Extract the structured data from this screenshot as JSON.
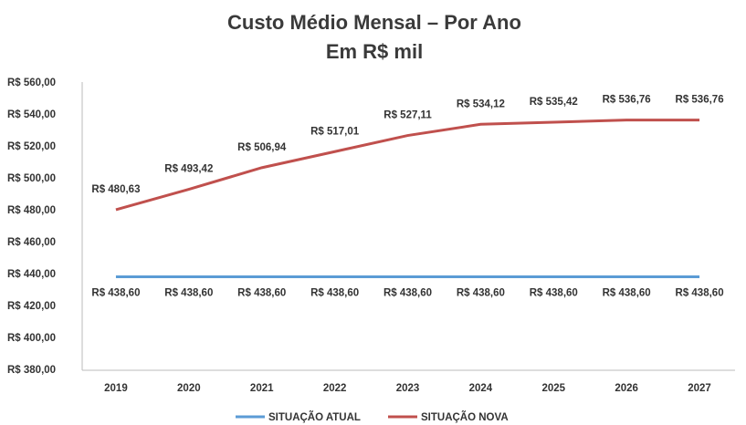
{
  "chart_data": {
    "type": "line",
    "title": "Custo Médio Mensal – Por Ano",
    "subtitle": "Em R$ mil",
    "categories": [
      "2019",
      "2020",
      "2021",
      "2022",
      "2023",
      "2024",
      "2025",
      "2026",
      "2027"
    ],
    "series": [
      {
        "name": "SITUAÇÃO ATUAL",
        "color": "#5b9bd5",
        "values": [
          438.6,
          438.6,
          438.6,
          438.6,
          438.6,
          438.6,
          438.6,
          438.6,
          438.6
        ],
        "value_labels": [
          "R$ 438,60",
          "R$ 438,60",
          "R$ 438,60",
          "R$ 438,60",
          "R$ 438,60",
          "R$ 438,60",
          "R$ 438,60",
          "R$ 438,60",
          "R$ 438,60"
        ]
      },
      {
        "name": "SITUAÇÃO NOVA",
        "color": "#c0504d",
        "values": [
          480.63,
          493.42,
          506.94,
          517.01,
          527.11,
          534.12,
          535.42,
          536.76,
          536.76
        ],
        "value_labels": [
          "R$ 480,63",
          "R$ 493,42",
          "R$ 506,94",
          "R$ 517,01",
          "R$ 527,11",
          "R$ 534,12",
          "R$ 535,42",
          "R$ 536,76",
          "R$ 536,76"
        ]
      }
    ],
    "ylim": [
      380,
      560
    ],
    "yticks": [
      {
        "value": 380,
        "label": "R$ 380,00"
      },
      {
        "value": 400,
        "label": "R$ 400,00"
      },
      {
        "value": 420,
        "label": "R$ 420,00"
      },
      {
        "value": 440,
        "label": "R$ 440,00"
      },
      {
        "value": 460,
        "label": "R$ 460,00"
      },
      {
        "value": 480,
        "label": "R$ 480,00"
      },
      {
        "value": 500,
        "label": "R$ 500,00"
      },
      {
        "value": 520,
        "label": "R$ 520,00"
      },
      {
        "value": 540,
        "label": "R$ 540,00"
      },
      {
        "value": 560,
        "label": "R$ 560,00"
      }
    ],
    "grid": false,
    "legend": "bottom"
  }
}
